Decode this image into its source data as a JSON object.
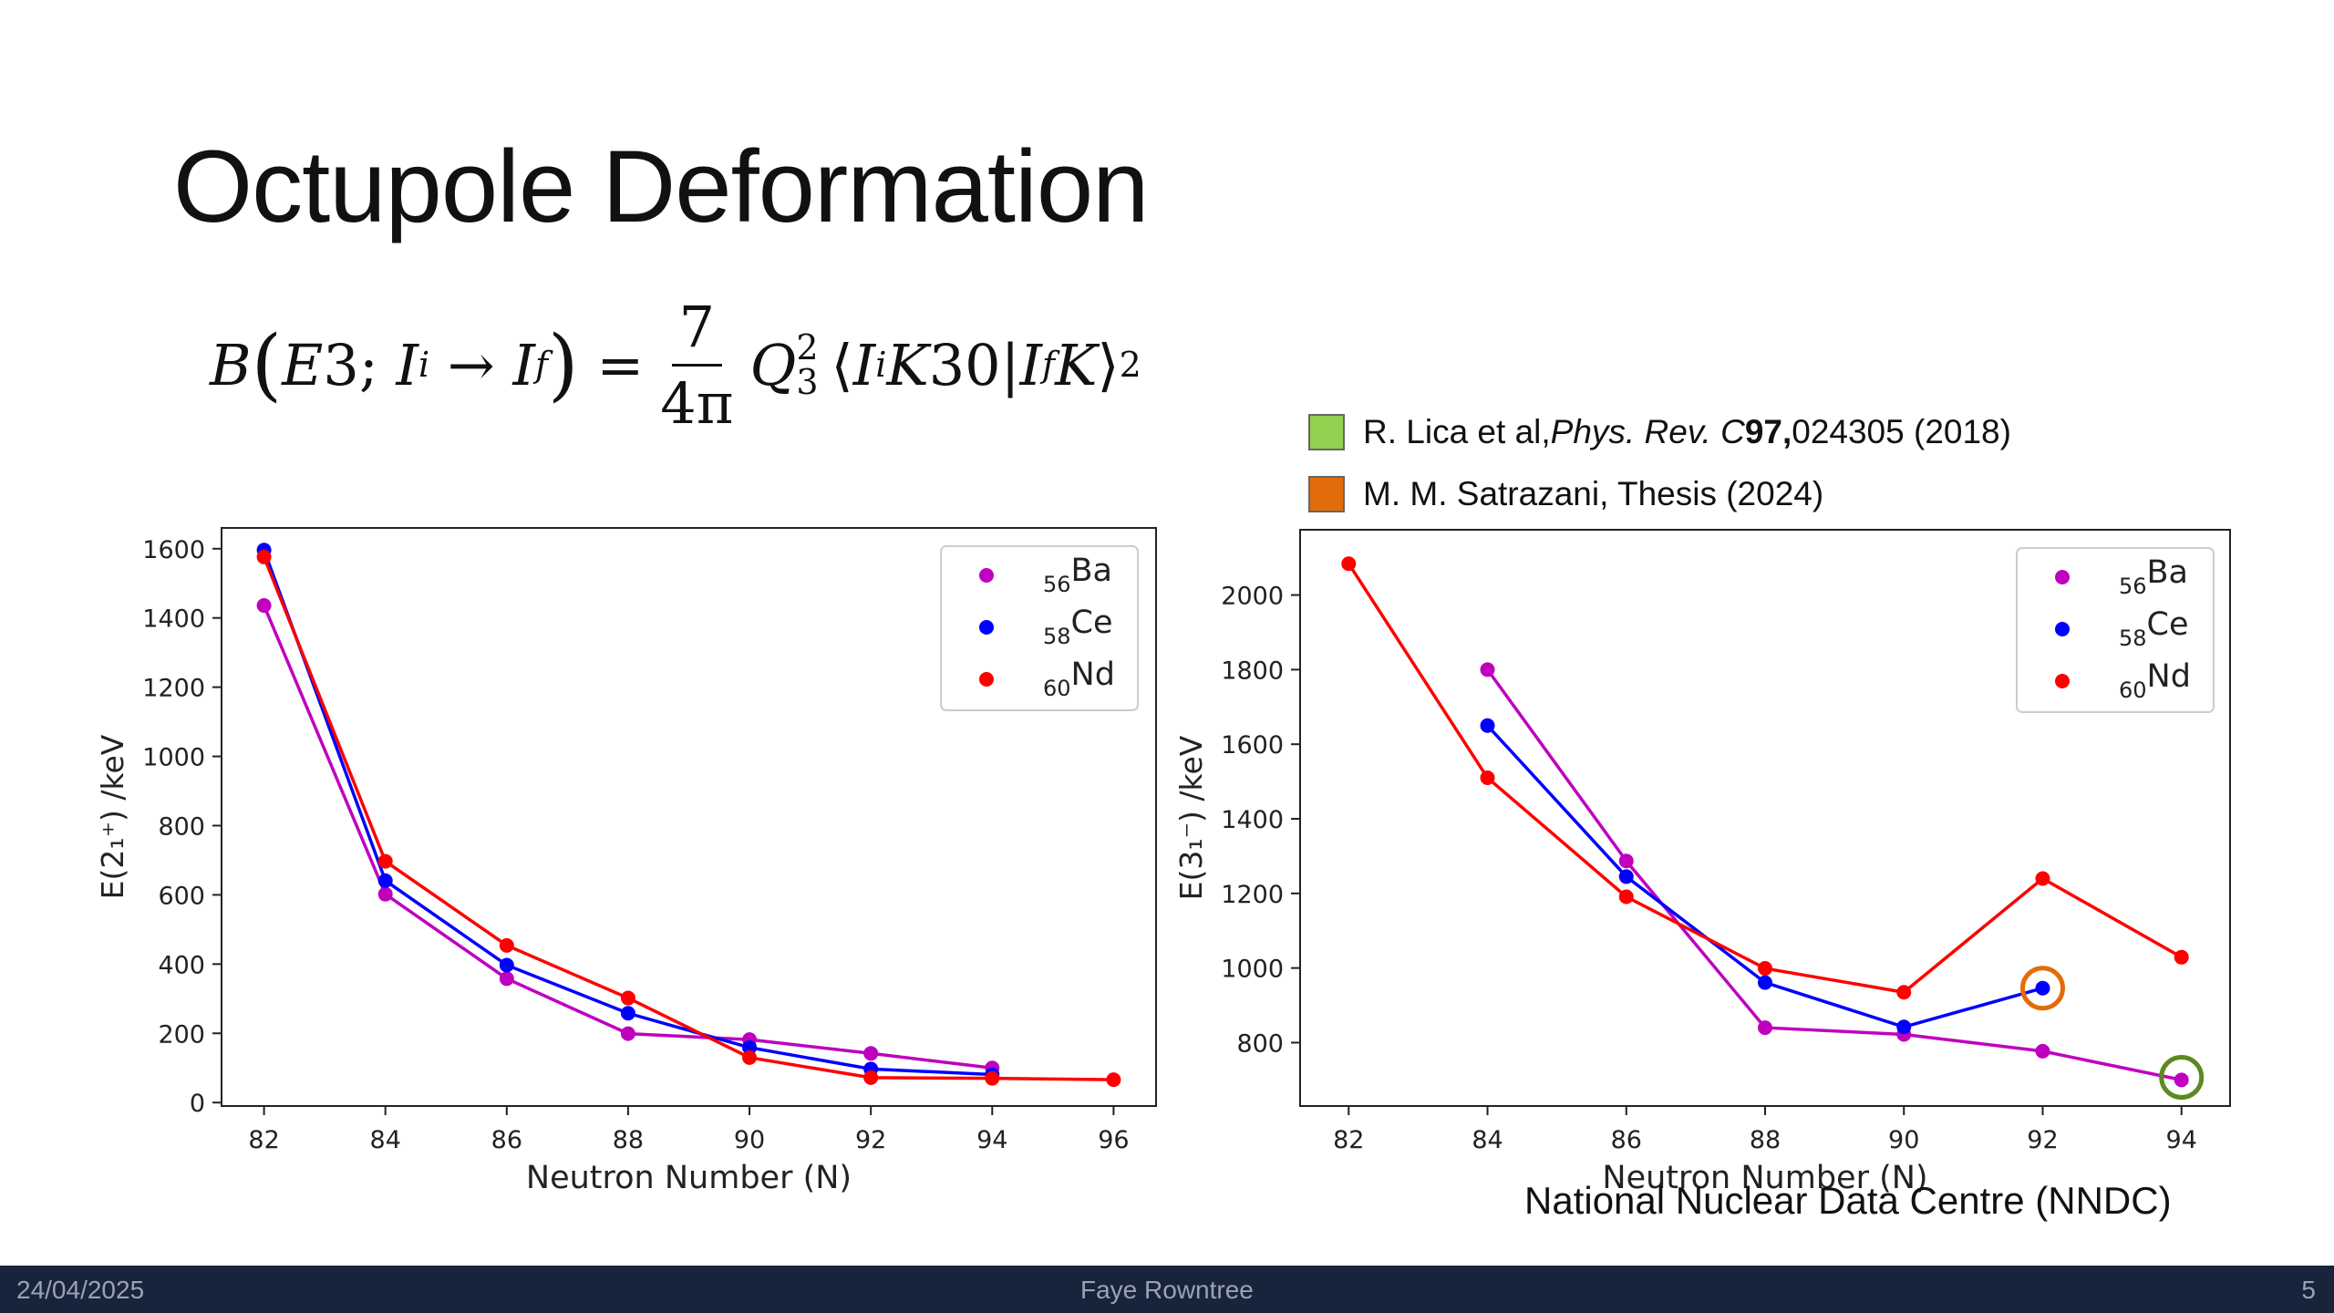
{
  "slide": {
    "title": "Octupole Deformation",
    "source": "National Nuclear Data Centre (NNDC)"
  },
  "equation": {
    "text": "B(E3; I_i → I_f) = 7/(4π) Q_3^2 ⟨I_i K 3 0 | I_f K⟩^2"
  },
  "references": [
    {
      "color": "#92d050",
      "author": "R. Lica et al, ",
      "journal": "Phys. Rev. C",
      "volume": "97,",
      "rest": " 024305 (2018)"
    },
    {
      "color": "#e36c0a",
      "text": "M. M. Satrazani, Thesis (2024)"
    }
  ],
  "footer": {
    "date": "24/04/2025",
    "author": "Faye Rowntree",
    "page": "5"
  },
  "chart_data": [
    {
      "type": "line",
      "xlabel": "Neutron Number (N)",
      "ylabel": "E(2₁⁺) /keV",
      "xlim": [
        81.3,
        96.7
      ],
      "ylim": [
        -10,
        1660
      ],
      "xticks": [
        82,
        84,
        86,
        88,
        90,
        92,
        94,
        96
      ],
      "yticks": [
        0,
        200,
        400,
        600,
        800,
        1000,
        1200,
        1400,
        1600
      ],
      "legend_position": "top-right",
      "series": [
        {
          "name": "Ba",
          "z": "56",
          "color": "#bf00bf",
          "x": [
            82,
            84,
            86,
            88,
            90,
            92,
            94
          ],
          "y": [
            1436,
            602,
            358,
            199,
            182,
            142,
            100
          ]
        },
        {
          "name": "Ce",
          "z": "58",
          "color": "#0000ff",
          "x": [
            82,
            84,
            86,
            88,
            90,
            92,
            94
          ],
          "y": [
            1596,
            641,
            397,
            258,
            159,
            97,
            81
          ]
        },
        {
          "name": "Nd",
          "z": "60",
          "color": "#ff0000",
          "x": [
            82,
            84,
            86,
            88,
            90,
            92,
            94,
            96
          ],
          "y": [
            1576,
            697,
            454,
            302,
            130,
            72,
            70,
            66
          ]
        }
      ],
      "markers": []
    },
    {
      "type": "line",
      "xlabel": "Neutron Number (N)",
      "ylabel": "E(3₁⁻) /keV",
      "xlim": [
        81.3,
        94.7
      ],
      "ylim": [
        630,
        2175
      ],
      "xticks": [
        82,
        84,
        86,
        88,
        90,
        92,
        94
      ],
      "yticks": [
        800,
        1000,
        1200,
        1400,
        1600,
        1800,
        2000
      ],
      "legend_position": "top-right",
      "series": [
        {
          "name": "Ba",
          "z": "56",
          "color": "#bf00bf",
          "x": [
            84,
            86,
            88,
            90,
            92,
            94
          ],
          "y": [
            1800,
            1287,
            840,
            822,
            777,
            700
          ]
        },
        {
          "name": "Ce",
          "z": "58",
          "color": "#0000ff",
          "x": [
            84,
            86,
            88,
            90,
            92
          ],
          "y": [
            1650,
            1245,
            961,
            842,
            946
          ]
        },
        {
          "name": "Nd",
          "z": "60",
          "color": "#ff0000",
          "x": [
            82,
            84,
            86,
            88,
            90,
            92,
            94
          ],
          "y": [
            2084,
            1510,
            1191,
            999,
            935,
            1240,
            1029
          ]
        }
      ],
      "markers": [
        {
          "x": 92,
          "y": 946,
          "color": "#e36c0a"
        },
        {
          "x": 94,
          "y": 707,
          "color": "#5b8a1e"
        }
      ]
    }
  ]
}
